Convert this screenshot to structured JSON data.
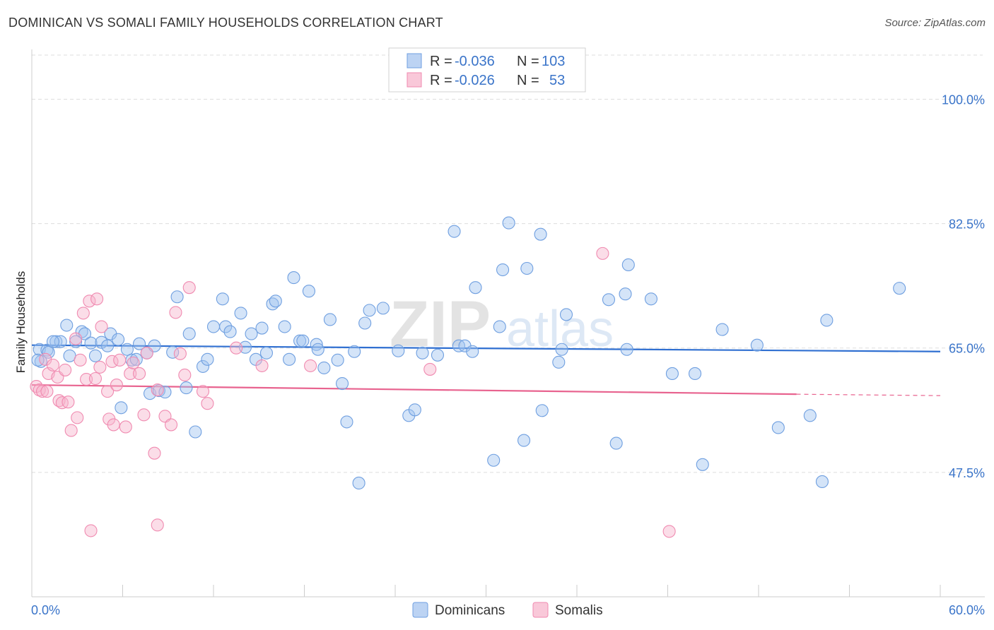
{
  "header": {
    "title": "DOMINICAN VS SOMALI FAMILY HOUSEHOLDS CORRELATION CHART",
    "source": "Source: ZipAtlas.com"
  },
  "watermark": {
    "zip": "ZIP",
    "atlas": "atlas"
  },
  "legend": {
    "rows": [
      {
        "r_label": "R =",
        "r_value": "-0.036",
        "n_label": "N =",
        "n_value": "103",
        "color": "#6f9fe0"
      },
      {
        "r_label": "R =",
        "r_value": "-0.026",
        "n_label": "N =",
        "n_value": "53",
        "color": "#f08ab0"
      }
    ]
  },
  "bottom_legend": {
    "series1": "Dominicans",
    "series2": "Somalis"
  },
  "chart_data": {
    "type": "scatter",
    "title": "DOMINICAN VS SOMALI FAMILY HOUSEHOLDS CORRELATION CHART",
    "xlabel": "",
    "ylabel": "Family Households",
    "xlim": [
      0,
      60
    ],
    "ylim": [
      30,
      107
    ],
    "x_tick_labels": [
      "0.0%",
      "60.0%"
    ],
    "y_ticks": [
      47.5,
      65.0,
      82.5,
      100.0
    ],
    "y_tick_labels": [
      "47.5%",
      "65.0%",
      "82.5%",
      "100.0%"
    ],
    "grid": true,
    "legend_position": "top-center",
    "series": [
      {
        "name": "Dominicans",
        "color": "#6f9fe0",
        "trend": {
          "x0": 0,
          "y0": 65.4,
          "x1": 60,
          "y1": 64.5
        },
        "points": [
          [
            0.5,
            64.8
          ],
          [
            0.6,
            63.1
          ],
          [
            1.0,
            64.7
          ],
          [
            1.1,
            64.4
          ],
          [
            1.6,
            65.9
          ],
          [
            1.9,
            65.9
          ],
          [
            2.3,
            68.2
          ],
          [
            2.5,
            63.9
          ],
          [
            2.9,
            65.9
          ],
          [
            3.3,
            67.3
          ],
          [
            3.5,
            67.0
          ],
          [
            3.9,
            65.7
          ],
          [
            4.2,
            63.9
          ],
          [
            4.6,
            65.8
          ],
          [
            5.0,
            65.3
          ],
          [
            5.2,
            67.0
          ],
          [
            5.7,
            66.2
          ],
          [
            5.9,
            56.6
          ],
          [
            6.3,
            64.8
          ],
          [
            6.6,
            63.3
          ],
          [
            6.9,
            63.4
          ],
          [
            7.1,
            65.6
          ],
          [
            7.6,
            64.3
          ],
          [
            7.8,
            58.6
          ],
          [
            8.1,
            65.3
          ],
          [
            8.4,
            59.0
          ],
          [
            8.8,
            58.8
          ],
          [
            9.3,
            64.4
          ],
          [
            9.6,
            72.2
          ],
          [
            10.2,
            59.4
          ],
          [
            10.4,
            67.0
          ],
          [
            10.8,
            53.2
          ],
          [
            11.3,
            62.4
          ],
          [
            11.6,
            63.4
          ],
          [
            12.0,
            68.0
          ],
          [
            12.6,
            71.9
          ],
          [
            12.8,
            68.0
          ],
          [
            13.1,
            67.3
          ],
          [
            13.8,
            69.9
          ],
          [
            14.1,
            65.1
          ],
          [
            14.5,
            67.0
          ],
          [
            14.8,
            63.4
          ],
          [
            15.2,
            67.8
          ],
          [
            15.5,
            64.3
          ],
          [
            15.9,
            71.2
          ],
          [
            16.1,
            71.6
          ],
          [
            16.7,
            68.0
          ],
          [
            17.0,
            63.4
          ],
          [
            17.3,
            74.9
          ],
          [
            17.7,
            66.0
          ],
          [
            17.9,
            66.0
          ],
          [
            18.3,
            73.0
          ],
          [
            18.8,
            65.5
          ],
          [
            18.9,
            64.8
          ],
          [
            19.3,
            62.2
          ],
          [
            19.7,
            69.0
          ],
          [
            20.2,
            63.3
          ],
          [
            20.5,
            60.0
          ],
          [
            20.8,
            54.6
          ],
          [
            21.3,
            64.5
          ],
          [
            21.6,
            46.0
          ],
          [
            22.0,
            68.5
          ],
          [
            22.3,
            70.3
          ],
          [
            23.2,
            70.6
          ],
          [
            24.2,
            64.6
          ],
          [
            24.9,
            55.5
          ],
          [
            25.3,
            56.3
          ],
          [
            25.8,
            64.3
          ],
          [
            26.8,
            64.0
          ],
          [
            27.9,
            81.4
          ],
          [
            28.2,
            65.3
          ],
          [
            28.6,
            65.3
          ],
          [
            29.1,
            64.5
          ],
          [
            29.3,
            73.5
          ],
          [
            30.5,
            49.2
          ],
          [
            30.9,
            68.0
          ],
          [
            31.1,
            76.0
          ],
          [
            31.5,
            82.6
          ],
          [
            32.5,
            52.0
          ],
          [
            32.7,
            76.2
          ],
          [
            33.6,
            81.0
          ],
          [
            33.7,
            56.2
          ],
          [
            34.8,
            63.0
          ],
          [
            35.0,
            64.8
          ],
          [
            35.3,
            69.7
          ],
          [
            38.1,
            71.8
          ],
          [
            38.6,
            51.6
          ],
          [
            39.2,
            72.6
          ],
          [
            39.4,
            76.7
          ],
          [
            39.3,
            64.8
          ],
          [
            40.9,
            71.9
          ],
          [
            42.3,
            61.4
          ],
          [
            43.8,
            61.4
          ],
          [
            44.3,
            48.6
          ],
          [
            45.6,
            67.6
          ],
          [
            47.9,
            65.4
          ],
          [
            49.3,
            53.8
          ],
          [
            51.4,
            55.5
          ],
          [
            52.2,
            46.2
          ],
          [
            52.5,
            68.9
          ],
          [
            57.3,
            73.4
          ],
          [
            0.4,
            63.3
          ],
          [
            1.4,
            65.9
          ]
        ]
      },
      {
        "name": "Somalis",
        "color": "#f08ab0",
        "trend": {
          "x0": 0,
          "y0": 59.8,
          "x1": 50.5,
          "y1": 58.5,
          "dash_to_x": 60,
          "dash_to_y": 58.3
        },
        "points": [
          [
            0.3,
            59.6
          ],
          [
            0.5,
            59.1
          ],
          [
            0.7,
            58.9
          ],
          [
            0.9,
            63.4
          ],
          [
            1.0,
            58.9
          ],
          [
            1.1,
            61.4
          ],
          [
            1.4,
            62.6
          ],
          [
            1.7,
            60.9
          ],
          [
            1.8,
            57.6
          ],
          [
            2.0,
            57.3
          ],
          [
            2.2,
            61.9
          ],
          [
            2.4,
            57.4
          ],
          [
            2.6,
            53.4
          ],
          [
            2.9,
            66.3
          ],
          [
            3.0,
            55.2
          ],
          [
            3.2,
            63.3
          ],
          [
            3.4,
            69.9
          ],
          [
            3.6,
            60.6
          ],
          [
            3.8,
            71.6
          ],
          [
            3.9,
            39.3
          ],
          [
            4.2,
            60.7
          ],
          [
            4.3,
            71.9
          ],
          [
            4.5,
            62.3
          ],
          [
            4.6,
            68.0
          ],
          [
            5.0,
            58.9
          ],
          [
            5.1,
            55.0
          ],
          [
            5.3,
            63.1
          ],
          [
            5.4,
            54.2
          ],
          [
            5.6,
            59.8
          ],
          [
            5.8,
            63.3
          ],
          [
            6.2,
            53.9
          ],
          [
            6.5,
            61.4
          ],
          [
            6.7,
            62.9
          ],
          [
            7.1,
            61.4
          ],
          [
            7.4,
            55.6
          ],
          [
            7.6,
            64.3
          ],
          [
            8.1,
            50.2
          ],
          [
            8.3,
            59.1
          ],
          [
            8.8,
            55.4
          ],
          [
            9.2,
            54.2
          ],
          [
            9.5,
            70.0
          ],
          [
            9.8,
            64.2
          ],
          [
            10.1,
            61.2
          ],
          [
            10.4,
            73.5
          ],
          [
            11.3,
            58.9
          ],
          [
            11.6,
            57.2
          ],
          [
            13.5,
            65.0
          ],
          [
            15.2,
            62.5
          ],
          [
            18.4,
            62.5
          ],
          [
            26.3,
            62.0
          ],
          [
            37.7,
            78.3
          ],
          [
            42.1,
            39.2
          ],
          [
            8.3,
            40.1
          ]
        ]
      }
    ]
  }
}
